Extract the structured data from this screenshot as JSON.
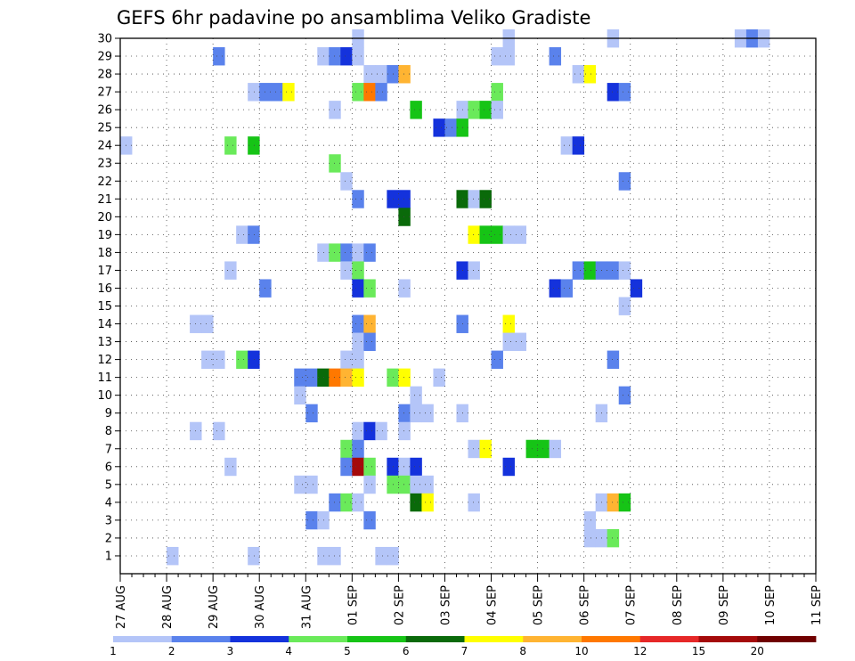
{
  "chart_data": {
    "type": "heatmap",
    "title": "GEFS 6hr padavine po ansamblima Veliko Gradiste",
    "x_tick_labels": [
      "27 AUG",
      "28 AUG",
      "29 AUG",
      "30 AUG",
      "31 AUG",
      "01 SEP",
      "02 SEP",
      "03 SEP",
      "04 SEP",
      "05 SEP",
      "06 SEP",
      "07 SEP",
      "08 SEP",
      "09 SEP",
      "10 SEP",
      "11 SEP"
    ],
    "y_tick_labels": [
      "1",
      "2",
      "3",
      "4",
      "5",
      "6",
      "7",
      "8",
      "9",
      "10",
      "11",
      "12",
      "13",
      "14",
      "15",
      "16",
      "17",
      "18",
      "19",
      "20",
      "21",
      "22",
      "23",
      "24",
      "25",
      "26",
      "27",
      "28",
      "29",
      "30"
    ],
    "x_range_days": [
      0,
      15
    ],
    "y_range": [
      0,
      30
    ],
    "steps_per_day": 4,
    "grid": "dotted",
    "color_levels": [
      "1",
      "2",
      "3",
      "4",
      "5",
      "6",
      "7",
      "8",
      "10",
      "12",
      "15",
      "20"
    ],
    "colors": [
      "#b4c5f8",
      "#5a82ec",
      "#1432dc",
      "#6aea5a",
      "#16c416",
      "#0a6a0a",
      "#ffff00",
      "#ffb432",
      "#ff7800",
      "#e62828",
      "#a50a0a",
      "#700000"
    ],
    "cells": [
      [
        0,
        1,
        4,
        "#b4c5f8"
      ],
      [
        1,
        30,
        20,
        "#b4c5f8"
      ],
      [
        1,
        30,
        33,
        "#b4c5f8"
      ],
      [
        1,
        30,
        42,
        "#b4c5f8"
      ],
      [
        1,
        30,
        53,
        "#b4c5f8"
      ],
      [
        1,
        30,
        54,
        "#5a82ec"
      ],
      [
        1,
        30,
        55,
        "#b4c5f8"
      ],
      [
        2,
        29,
        8,
        "#5a82ec"
      ],
      [
        2,
        29,
        17,
        "#b4c5f8"
      ],
      [
        2,
        29,
        18,
        "#5a82ec"
      ],
      [
        2,
        29,
        19,
        "#1432dc"
      ],
      [
        2,
        29,
        20,
        "#b4c5f8"
      ],
      [
        2,
        29,
        32,
        "#b4c5f8"
      ],
      [
        2,
        29,
        33,
        "#b4c5f8"
      ],
      [
        2,
        29,
        37,
        "#5a82ec"
      ],
      [
        3,
        28,
        21,
        "#b4c5f8"
      ],
      [
        3,
        28,
        22,
        "#b4c5f8"
      ],
      [
        3,
        28,
        23,
        "#5a82ec"
      ],
      [
        3,
        28,
        24,
        "#ffb432"
      ],
      [
        3,
        28,
        39,
        "#b4c5f8"
      ],
      [
        3,
        28,
        40,
        "#ffff00"
      ],
      [
        4,
        27,
        11,
        "#b4c5f8"
      ],
      [
        4,
        27,
        12,
        "#5a82ec"
      ],
      [
        4,
        27,
        13,
        "#5a82ec"
      ],
      [
        4,
        27,
        14,
        "#ffff00"
      ],
      [
        4,
        27,
        20,
        "#6aea5a"
      ],
      [
        4,
        27,
        21,
        "#ff7800"
      ],
      [
        4,
        27,
        22,
        "#5a82ec"
      ],
      [
        4,
        27,
        32,
        "#6aea5a"
      ],
      [
        4,
        27,
        42,
        "#1432dc"
      ],
      [
        4,
        27,
        43,
        "#5a82ec"
      ],
      [
        5,
        26,
        18,
        "#b4c5f8"
      ],
      [
        5,
        26,
        25,
        "#16c416"
      ],
      [
        5,
        26,
        29,
        "#b4c5f8"
      ],
      [
        5,
        26,
        30,
        "#6aea5a"
      ],
      [
        5,
        26,
        31,
        "#16c416"
      ],
      [
        5,
        26,
        32,
        "#b4c5f8"
      ],
      [
        6,
        25,
        27,
        "#1432dc"
      ],
      [
        6,
        25,
        28,
        "#5a82ec"
      ],
      [
        6,
        25,
        29,
        "#16c416"
      ],
      [
        7,
        24,
        0,
        "#b4c5f8"
      ],
      [
        7,
        24,
        9,
        "#6aea5a"
      ],
      [
        7,
        24,
        11,
        "#16c416"
      ],
      [
        7,
        24,
        38,
        "#b4c5f8"
      ],
      [
        7,
        24,
        39,
        "#1432dc"
      ],
      [
        8,
        23,
        18,
        "#6aea5a"
      ],
      [
        9,
        22,
        19,
        "#b4c5f8"
      ],
      [
        9,
        22,
        43,
        "#5a82ec"
      ],
      [
        10,
        21,
        20,
        "#5a82ec"
      ],
      [
        10,
        21,
        23,
        "#1432dc"
      ],
      [
        10,
        21,
        24,
        "#1432dc"
      ],
      [
        10,
        21,
        29,
        "#0a6a0a"
      ],
      [
        10,
        21,
        30,
        "#b4c5f8"
      ],
      [
        10,
        21,
        31,
        "#0a6a0a"
      ],
      [
        11,
        20,
        24,
        "#0a6a0a"
      ],
      [
        12,
        19,
        10,
        "#b4c5f8"
      ],
      [
        12,
        19,
        11,
        "#5a82ec"
      ],
      [
        12,
        19,
        30,
        "#ffff00"
      ],
      [
        12,
        19,
        31,
        "#16c416"
      ],
      [
        12,
        19,
        32,
        "#16c416"
      ],
      [
        12,
        19,
        33,
        "#b4c5f8"
      ],
      [
        12,
        19,
        34,
        "#b4c5f8"
      ],
      [
        13,
        18,
        17,
        "#b4c5f8"
      ],
      [
        13,
        18,
        18,
        "#6aea5a"
      ],
      [
        13,
        18,
        19,
        "#5a82ec"
      ],
      [
        13,
        18,
        20,
        "#b4c5f8"
      ],
      [
        13,
        18,
        21,
        "#5a82ec"
      ],
      [
        14,
        17,
        9,
        "#b4c5f8"
      ],
      [
        14,
        17,
        19,
        "#b4c5f8"
      ],
      [
        14,
        17,
        20,
        "#6aea5a"
      ],
      [
        14,
        17,
        29,
        "#1432dc"
      ],
      [
        14,
        17,
        30,
        "#b4c5f8"
      ],
      [
        14,
        17,
        39,
        "#5a82ec"
      ],
      [
        14,
        17,
        40,
        "#16c416"
      ],
      [
        14,
        17,
        41,
        "#5a82ec"
      ],
      [
        14,
        17,
        42,
        "#5a82ec"
      ],
      [
        14,
        17,
        43,
        "#b4c5f8"
      ],
      [
        15,
        16,
        12,
        "#5a82ec"
      ],
      [
        15,
        16,
        20,
        "#1432dc"
      ],
      [
        15,
        16,
        21,
        "#6aea5a"
      ],
      [
        15,
        16,
        24,
        "#b4c5f8"
      ],
      [
        15,
        16,
        37,
        "#1432dc"
      ],
      [
        15,
        16,
        38,
        "#5a82ec"
      ],
      [
        15,
        16,
        44,
        "#1432dc"
      ],
      [
        16,
        15,
        43,
        "#b4c5f8"
      ],
      [
        17,
        14,
        6,
        "#b4c5f8"
      ],
      [
        17,
        14,
        7,
        "#b4c5f8"
      ],
      [
        17,
        14,
        20,
        "#5a82ec"
      ],
      [
        17,
        14,
        21,
        "#ffb432"
      ],
      [
        17,
        14,
        29,
        "#5a82ec"
      ],
      [
        17,
        14,
        33,
        "#ffff00"
      ],
      [
        18,
        13,
        20,
        "#b4c5f8"
      ],
      [
        18,
        13,
        21,
        "#5a82ec"
      ],
      [
        18,
        13,
        33,
        "#b4c5f8"
      ],
      [
        18,
        13,
        34,
        "#b4c5f8"
      ],
      [
        19,
        12,
        7,
        "#b4c5f8"
      ],
      [
        19,
        12,
        8,
        "#b4c5f8"
      ],
      [
        19,
        12,
        10,
        "#6aea5a"
      ],
      [
        19,
        12,
        11,
        "#1432dc"
      ],
      [
        19,
        12,
        19,
        "#b4c5f8"
      ],
      [
        19,
        12,
        20,
        "#b4c5f8"
      ],
      [
        19,
        12,
        32,
        "#5a82ec"
      ],
      [
        19,
        12,
        42,
        "#5a82ec"
      ],
      [
        20,
        11,
        15,
        "#5a82ec"
      ],
      [
        20,
        11,
        16,
        "#5a82ec"
      ],
      [
        20,
        11,
        17,
        "#0a6a0a"
      ],
      [
        20,
        11,
        18,
        "#ff7800"
      ],
      [
        20,
        11,
        19,
        "#ffb432"
      ],
      [
        20,
        11,
        20,
        "#ffff00"
      ],
      [
        20,
        11,
        23,
        "#6aea5a"
      ],
      [
        20,
        11,
        24,
        "#ffff00"
      ],
      [
        20,
        11,
        27,
        "#b4c5f8"
      ],
      [
        21,
        10,
        15,
        "#b4c5f8"
      ],
      [
        21,
        10,
        25,
        "#b4c5f8"
      ],
      [
        21,
        10,
        43,
        "#5a82ec"
      ],
      [
        22,
        9,
        16,
        "#5a82ec"
      ],
      [
        22,
        9,
        24,
        "#5a82ec"
      ],
      [
        22,
        9,
        25,
        "#b4c5f8"
      ],
      [
        22,
        9,
        26,
        "#b4c5f8"
      ],
      [
        22,
        9,
        29,
        "#b4c5f8"
      ],
      [
        22,
        9,
        41,
        "#b4c5f8"
      ],
      [
        23,
        8,
        6,
        "#b4c5f8"
      ],
      [
        23,
        8,
        8,
        "#b4c5f8"
      ],
      [
        23,
        8,
        20,
        "#b4c5f8"
      ],
      [
        23,
        8,
        21,
        "#1432dc"
      ],
      [
        23,
        8,
        22,
        "#b4c5f8"
      ],
      [
        23,
        8,
        24,
        "#b4c5f8"
      ],
      [
        24,
        7,
        19,
        "#6aea5a"
      ],
      [
        24,
        7,
        20,
        "#5a82ec"
      ],
      [
        24,
        7,
        30,
        "#b4c5f8"
      ],
      [
        24,
        7,
        31,
        "#ffff00"
      ],
      [
        24,
        7,
        35,
        "#16c416"
      ],
      [
        24,
        7,
        36,
        "#16c416"
      ],
      [
        24,
        7,
        37,
        "#b4c5f8"
      ],
      [
        25,
        6,
        9,
        "#b4c5f8"
      ],
      [
        25,
        6,
        19,
        "#5a82ec"
      ],
      [
        25,
        6,
        20,
        "#a50a0a"
      ],
      [
        25,
        6,
        21,
        "#6aea5a"
      ],
      [
        25,
        6,
        23,
        "#1432dc"
      ],
      [
        25,
        6,
        24,
        "#b4c5f8"
      ],
      [
        25,
        6,
        25,
        "#1432dc"
      ],
      [
        25,
        6,
        33,
        "#1432dc"
      ],
      [
        26,
        5,
        15,
        "#b4c5f8"
      ],
      [
        26,
        5,
        16,
        "#b4c5f8"
      ],
      [
        26,
        5,
        21,
        "#b4c5f8"
      ],
      [
        26,
        5,
        23,
        "#6aea5a"
      ],
      [
        26,
        5,
        24,
        "#6aea5a"
      ],
      [
        26,
        5,
        25,
        "#b4c5f8"
      ],
      [
        26,
        5,
        26,
        "#b4c5f8"
      ],
      [
        27,
        4,
        18,
        "#5a82ec"
      ],
      [
        27,
        4,
        19,
        "#6aea5a"
      ],
      [
        27,
        4,
        20,
        "#b4c5f8"
      ],
      [
        27,
        4,
        25,
        "#0a6a0a"
      ],
      [
        27,
        4,
        26,
        "#ffff00"
      ],
      [
        27,
        4,
        30,
        "#b4c5f8"
      ],
      [
        27,
        4,
        41,
        "#b4c5f8"
      ],
      [
        27,
        4,
        42,
        "#ffb432"
      ],
      [
        27,
        4,
        43,
        "#16c416"
      ],
      [
        28,
        3,
        16,
        "#5a82ec"
      ],
      [
        28,
        3,
        17,
        "#b4c5f8"
      ],
      [
        28,
        3,
        21,
        "#5a82ec"
      ],
      [
        28,
        3,
        40,
        "#b4c5f8"
      ],
      [
        29,
        2,
        40,
        "#b4c5f8"
      ],
      [
        29,
        2,
        41,
        "#b4c5f8"
      ],
      [
        29,
        2,
        42,
        "#6aea5a"
      ],
      [
        30,
        1,
        11,
        "#b4c5f8"
      ],
      [
        30,
        1,
        17,
        "#b4c5f8"
      ],
      [
        30,
        1,
        18,
        "#b4c5f8"
      ],
      [
        30,
        1,
        22,
        "#b4c5f8"
      ],
      [
        30,
        1,
        23,
        "#b4c5f8"
      ]
    ]
  }
}
